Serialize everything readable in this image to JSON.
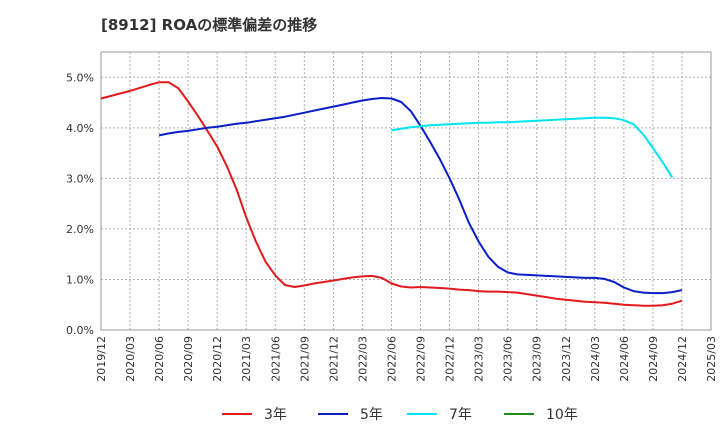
{
  "title": "[8912]  ROAの標準偏差の推移",
  "chart_data": {
    "type": "line",
    "title": "[8912]  ROAの標準偏差の推移",
    "xlabel": "",
    "ylabel": "",
    "x_ticks": [
      "2019/12",
      "2020/03",
      "2020/06",
      "2020/09",
      "2020/12",
      "2021/03",
      "2021/06",
      "2021/09",
      "2021/12",
      "2022/03",
      "2022/06",
      "2022/09",
      "2022/12",
      "2023/03",
      "2023/06",
      "2023/09",
      "2023/12",
      "2024/03",
      "2024/06",
      "2024/09",
      "2024/12",
      "2025/03"
    ],
    "y_ticks": [
      "0.0%",
      "1.0%",
      "2.0%",
      "3.0%",
      "4.0%",
      "5.0%"
    ],
    "ylim": [
      0,
      5.5
    ],
    "grid": true,
    "legend_position": "bottom",
    "series": [
      {
        "name": "3年",
        "color": "#e31a1c",
        "points": [
          [
            "2019/12",
            4.58
          ],
          [
            "2020/01",
            4.63
          ],
          [
            "2020/02",
            4.68
          ],
          [
            "2020/03",
            4.73
          ],
          [
            "2020/04",
            4.79
          ],
          [
            "2020/05",
            4.85
          ],
          [
            "2020/06",
            4.9
          ],
          [
            "2020/07",
            4.9
          ],
          [
            "2020/08",
            4.78
          ],
          [
            "2020/09",
            4.52
          ],
          [
            "2020/10",
            4.24
          ],
          [
            "2020/11",
            3.94
          ],
          [
            "2020/12",
            3.63
          ],
          [
            "2021/01",
            3.24
          ],
          [
            "2021/02",
            2.78
          ],
          [
            "2021/03",
            2.23
          ],
          [
            "2021/04",
            1.75
          ],
          [
            "2021/05",
            1.35
          ],
          [
            "2021/06",
            1.08
          ],
          [
            "2021/07",
            0.89
          ],
          [
            "2021/08",
            0.85
          ],
          [
            "2021/09",
            0.88
          ],
          [
            "2021/10",
            0.92
          ],
          [
            "2021/11",
            0.95
          ],
          [
            "2021/12",
            0.98
          ],
          [
            "2022/01",
            1.01
          ],
          [
            "2022/02",
            1.04
          ],
          [
            "2022/03",
            1.06
          ],
          [
            "2022/04",
            1.07
          ],
          [
            "2022/05",
            1.03
          ],
          [
            "2022/06",
            0.92
          ],
          [
            "2022/07",
            0.86
          ],
          [
            "2022/08",
            0.84
          ],
          [
            "2022/09",
            0.85
          ],
          [
            "2022/10",
            0.84
          ],
          [
            "2022/11",
            0.83
          ],
          [
            "2022/12",
            0.82
          ],
          [
            "2023/01",
            0.8
          ],
          [
            "2023/02",
            0.79
          ],
          [
            "2023/03",
            0.77
          ],
          [
            "2023/04",
            0.76
          ],
          [
            "2023/05",
            0.76
          ],
          [
            "2023/06",
            0.75
          ],
          [
            "2023/07",
            0.74
          ],
          [
            "2023/08",
            0.71
          ],
          [
            "2023/09",
            0.68
          ],
          [
            "2023/10",
            0.65
          ],
          [
            "2023/11",
            0.62
          ],
          [
            "2023/12",
            0.6
          ],
          [
            "2024/01",
            0.58
          ],
          [
            "2024/02",
            0.56
          ],
          [
            "2024/03",
            0.55
          ],
          [
            "2024/04",
            0.54
          ],
          [
            "2024/05",
            0.52
          ],
          [
            "2024/06",
            0.5
          ],
          [
            "2024/07",
            0.49
          ],
          [
            "2024/08",
            0.48
          ],
          [
            "2024/09",
            0.48
          ],
          [
            "2024/10",
            0.49
          ],
          [
            "2024/11",
            0.52
          ],
          [
            "2024/12",
            0.58
          ]
        ]
      },
      {
        "name": "5年",
        "color": "#0b1ec8",
        "points": [
          [
            "2020/06",
            3.85
          ],
          [
            "2020/07",
            3.89
          ],
          [
            "2020/08",
            3.92
          ],
          [
            "2020/09",
            3.94
          ],
          [
            "2020/10",
            3.97
          ],
          [
            "2020/11",
            4.0
          ],
          [
            "2020/12",
            4.02
          ],
          [
            "2021/01",
            4.05
          ],
          [
            "2021/02",
            4.08
          ],
          [
            "2021/03",
            4.1
          ],
          [
            "2021/04",
            4.13
          ],
          [
            "2021/05",
            4.16
          ],
          [
            "2021/06",
            4.19
          ],
          [
            "2021/07",
            4.22
          ],
          [
            "2021/08",
            4.26
          ],
          [
            "2021/09",
            4.3
          ],
          [
            "2021/10",
            4.34
          ],
          [
            "2021/11",
            4.38
          ],
          [
            "2021/12",
            4.42
          ],
          [
            "2022/01",
            4.46
          ],
          [
            "2022/02",
            4.5
          ],
          [
            "2022/03",
            4.54
          ],
          [
            "2022/04",
            4.57
          ],
          [
            "2022/05",
            4.59
          ],
          [
            "2022/06",
            4.58
          ],
          [
            "2022/07",
            4.51
          ],
          [
            "2022/08",
            4.33
          ],
          [
            "2022/09",
            4.04
          ],
          [
            "2022/10",
            3.72
          ],
          [
            "2022/11",
            3.38
          ],
          [
            "2022/12",
            3.0
          ],
          [
            "2023/01",
            2.58
          ],
          [
            "2023/02",
            2.12
          ],
          [
            "2023/03",
            1.75
          ],
          [
            "2023/04",
            1.45
          ],
          [
            "2023/05",
            1.25
          ],
          [
            "2023/06",
            1.14
          ],
          [
            "2023/07",
            1.1
          ],
          [
            "2023/08",
            1.09
          ],
          [
            "2023/09",
            1.08
          ],
          [
            "2023/10",
            1.07
          ],
          [
            "2023/11",
            1.06
          ],
          [
            "2023/12",
            1.05
          ],
          [
            "2024/01",
            1.04
          ],
          [
            "2024/02",
            1.03
          ],
          [
            "2024/03",
            1.03
          ],
          [
            "2024/04",
            1.01
          ],
          [
            "2024/05",
            0.95
          ],
          [
            "2024/06",
            0.84
          ],
          [
            "2024/07",
            0.77
          ],
          [
            "2024/08",
            0.74
          ],
          [
            "2024/09",
            0.73
          ],
          [
            "2024/10",
            0.73
          ],
          [
            "2024/11",
            0.75
          ],
          [
            "2024/12",
            0.79
          ]
        ]
      },
      {
        "name": "7年",
        "color": "#00e5f0",
        "points": [
          [
            "2022/06",
            3.95
          ],
          [
            "2022/07",
            3.98
          ],
          [
            "2022/08",
            4.01
          ],
          [
            "2022/09",
            4.03
          ],
          [
            "2022/10",
            4.05
          ],
          [
            "2022/11",
            4.06
          ],
          [
            "2022/12",
            4.07
          ],
          [
            "2023/01",
            4.08
          ],
          [
            "2023/02",
            4.09
          ],
          [
            "2023/03",
            4.1
          ],
          [
            "2023/04",
            4.1
          ],
          [
            "2023/05",
            4.11
          ],
          [
            "2023/06",
            4.11
          ],
          [
            "2023/07",
            4.12
          ],
          [
            "2023/08",
            4.13
          ],
          [
            "2023/09",
            4.14
          ],
          [
            "2023/10",
            4.15
          ],
          [
            "2023/11",
            4.16
          ],
          [
            "2023/12",
            4.17
          ],
          [
            "2024/01",
            4.18
          ],
          [
            "2024/02",
            4.19
          ],
          [
            "2024/03",
            4.2
          ],
          [
            "2024/04",
            4.2
          ],
          [
            "2024/05",
            4.19
          ],
          [
            "2024/06",
            4.15
          ],
          [
            "2024/07",
            4.07
          ],
          [
            "2024/08",
            3.87
          ],
          [
            "2024/09",
            3.6
          ],
          [
            "2024/10",
            3.32
          ],
          [
            "2024/11",
            3.02
          ]
        ]
      },
      {
        "name": "10年",
        "color": "#1a8c1a",
        "points": []
      }
    ]
  }
}
